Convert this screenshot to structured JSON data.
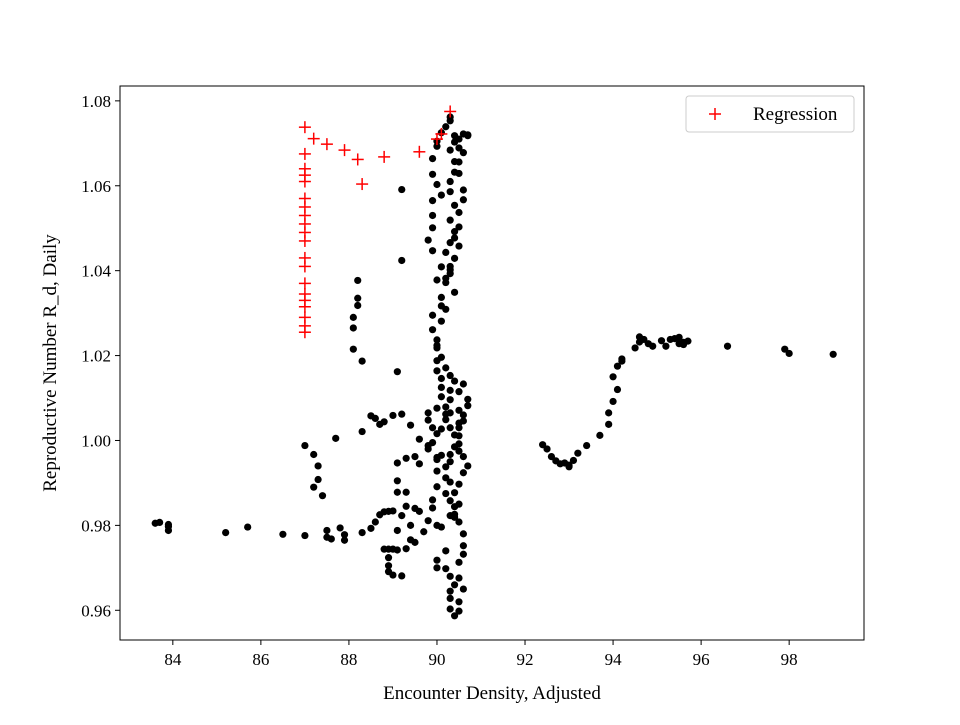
{
  "chart_data": {
    "type": "scatter",
    "title": "",
    "xlabel": "Encounter Density, Adjusted",
    "ylabel": "Reproductive Number R_d, Daily",
    "xlim": [
      82.8,
      99.7
    ],
    "ylim": [
      0.953,
      1.0835
    ],
    "xticks": [
      84,
      86,
      88,
      90,
      92,
      94,
      96,
      98
    ],
    "yticks": [
      0.96,
      0.98,
      1.0,
      1.02,
      1.04,
      1.06,
      1.08
    ],
    "ytick_labels": [
      "0.96",
      "0.98",
      "1.00",
      "1.02",
      "1.04",
      "1.06",
      "1.08"
    ],
    "grid": false,
    "legend_position": "top-right",
    "series": [
      {
        "name": "",
        "marker": "dot",
        "color": "#000000",
        "points": [
          [
            83.6,
            0.9805
          ],
          [
            83.7,
            0.9807
          ],
          [
            83.9,
            0.9788
          ],
          [
            83.9,
            0.9802
          ],
          [
            83.9,
            0.9797
          ],
          [
            85.2,
            0.9783
          ],
          [
            85.7,
            0.9796
          ],
          [
            86.5,
            0.9779
          ],
          [
            87.0,
            0.9776
          ],
          [
            87.5,
            0.9788
          ],
          [
            87.5,
            0.9772
          ],
          [
            87.6,
            0.9768
          ],
          [
            87.8,
            0.9794
          ],
          [
            87.9,
            0.9765
          ],
          [
            87.9,
            0.9778
          ],
          [
            87.0,
            0.9988
          ],
          [
            87.2,
            0.9967
          ],
          [
            87.3,
            0.994
          ],
          [
            87.3,
            0.9908
          ],
          [
            87.2,
            0.989
          ],
          [
            87.4,
            0.987
          ],
          [
            87.7,
            1.0005
          ],
          [
            88.2,
            1.0377
          ],
          [
            88.2,
            1.0335
          ],
          [
            88.2,
            1.0318
          ],
          [
            88.1,
            1.029
          ],
          [
            88.1,
            1.0265
          ],
          [
            88.1,
            1.0215
          ],
          [
            88.3,
            1.0187
          ],
          [
            88.3,
            1.0021
          ],
          [
            88.3,
            0.9783
          ],
          [
            88.5,
            0.9793
          ],
          [
            88.6,
            0.9808
          ],
          [
            88.7,
            0.9825
          ],
          [
            88.8,
            0.9832
          ],
          [
            88.9,
            0.9833
          ],
          [
            89.0,
            0.9834
          ],
          [
            88.5,
            1.0058
          ],
          [
            88.6,
            1.0052
          ],
          [
            88.7,
            1.0038
          ],
          [
            88.8,
            1.0044
          ],
          [
            89.0,
            1.0059
          ],
          [
            89.2,
            1.0062
          ],
          [
            89.4,
            1.0036
          ],
          [
            89.6,
            1.0003
          ],
          [
            89.1,
            1.0162
          ],
          [
            89.2,
            1.0424
          ],
          [
            89.2,
            1.0591
          ],
          [
            88.8,
            0.9744
          ],
          [
            88.9,
            0.9744
          ],
          [
            88.9,
            0.9724
          ],
          [
            89.0,
            0.9744
          ],
          [
            89.1,
            0.9742
          ],
          [
            88.9,
            0.9705
          ],
          [
            88.9,
            0.9691
          ],
          [
            89.0,
            0.9683
          ],
          [
            89.2,
            0.9681
          ],
          [
            89.3,
            0.9745
          ],
          [
            89.4,
            0.9766
          ],
          [
            89.5,
            0.976
          ],
          [
            89.1,
            0.9878
          ],
          [
            89.1,
            0.9905
          ],
          [
            89.3,
            0.9878
          ],
          [
            89.2,
            0.9823
          ],
          [
            89.1,
            0.9788
          ],
          [
            89.4,
            0.98
          ],
          [
            89.1,
            0.9947
          ],
          [
            89.3,
            0.9958
          ],
          [
            89.5,
            0.9962
          ],
          [
            89.6,
            0.9945
          ],
          [
            89.3,
            0.9845
          ],
          [
            89.5,
            0.984
          ],
          [
            89.6,
            0.9833
          ],
          [
            89.7,
            0.9785
          ],
          [
            89.8,
            0.9811
          ],
          [
            89.9,
            0.9841
          ],
          [
            89.9,
            0.986
          ],
          [
            90.0,
            0.9891
          ],
          [
            90.2,
            0.9912
          ],
          [
            90.0,
            0.9928
          ],
          [
            90.1,
            0.9965
          ],
          [
            89.8,
            1.0065
          ],
          [
            89.8,
            1.0048
          ],
          [
            89.9,
            1.003
          ],
          [
            90.0,
            1.0016
          ],
          [
            89.9,
            0.9995
          ],
          [
            89.8,
            0.998
          ],
          [
            90.0,
            0.996
          ],
          [
            90.0,
            0.9955
          ],
          [
            89.8,
            0.9988
          ],
          [
            90.1,
            1.0027
          ],
          [
            90.2,
            1.0062
          ],
          [
            90.1,
            1.0103
          ],
          [
            90.3,
            1.0096
          ],
          [
            90.2,
            1.0079
          ],
          [
            90.3,
            1.0065
          ],
          [
            90.0,
            1.0076
          ],
          [
            90.2,
            1.0049
          ],
          [
            90.3,
            1.003
          ],
          [
            90.4,
            1.0013
          ],
          [
            90.5,
            1.0041
          ],
          [
            90.6,
            1.006
          ],
          [
            90.7,
            1.0082
          ],
          [
            90.7,
            1.0097
          ],
          [
            90.6,
            1.0133
          ],
          [
            90.5,
            1.0115
          ],
          [
            90.4,
            1.014
          ],
          [
            90.3,
            1.0153
          ],
          [
            90.2,
            1.0171
          ],
          [
            90.0,
            1.0164
          ],
          [
            90.1,
            1.0196
          ],
          [
            90.0,
            1.0218
          ],
          [
            90.0,
            1.0237
          ],
          [
            89.9,
            1.0261
          ],
          [
            89.9,
            1.0295
          ],
          [
            90.1,
            1.0317
          ],
          [
            90.1,
            1.0337
          ],
          [
            90.2,
            1.0372
          ],
          [
            90.4,
            1.0349
          ],
          [
            90.3,
            1.0393
          ],
          [
            90.3,
            1.041
          ],
          [
            90.2,
            1.0443
          ],
          [
            90.3,
            1.0466
          ],
          [
            90.4,
            1.0492
          ],
          [
            90.3,
            1.0519
          ],
          [
            90.4,
            1.0554
          ],
          [
            90.3,
            1.0586
          ],
          [
            90.3,
            1.061
          ],
          [
            90.4,
            1.0632
          ],
          [
            90.4,
            1.0657
          ],
          [
            90.3,
            1.0684
          ],
          [
            90.4,
            1.0703
          ],
          [
            90.4,
            1.0718
          ],
          [
            90.5,
            1.071
          ],
          [
            90.6,
            1.0678
          ],
          [
            90.7,
            1.0718
          ],
          [
            90.7,
            1.072
          ],
          [
            90.6,
            1.0722
          ],
          [
            90.5,
            1.0689
          ],
          [
            90.5,
            1.0656
          ],
          [
            90.5,
            1.0629
          ],
          [
            90.6,
            1.059
          ],
          [
            90.6,
            1.0567
          ],
          [
            90.5,
            1.0537
          ],
          [
            90.5,
            1.0503
          ],
          [
            90.4,
            1.0477
          ],
          [
            90.5,
            1.0458
          ],
          [
            90.4,
            1.0429
          ],
          [
            90.3,
            1.0402
          ],
          [
            90.2,
            1.0382
          ],
          [
            90.3,
            1.0762
          ],
          [
            90.3,
            1.0753
          ],
          [
            90.2,
            1.0739
          ],
          [
            90.1,
            1.0725
          ],
          [
            90.0,
            1.0705
          ],
          [
            90.0,
            1.0693
          ],
          [
            89.9,
            1.0664
          ],
          [
            89.9,
            1.0627
          ],
          [
            90.0,
            1.0603
          ],
          [
            90.1,
            1.0578
          ],
          [
            89.9,
            1.0565
          ],
          [
            89.9,
            1.053
          ],
          [
            89.9,
            1.0501
          ],
          [
            89.8,
            1.0472
          ],
          [
            89.9,
            1.0447
          ],
          [
            90.1,
            1.0409
          ],
          [
            90.0,
            1.0378
          ],
          [
            90.2,
            1.0309
          ],
          [
            90.1,
            1.0281
          ],
          [
            90.0,
            1.0224
          ],
          [
            90.0,
            1.0188
          ],
          [
            90.1,
            1.0146
          ],
          [
            90.1,
            1.0125
          ],
          [
            90.3,
            1.0118
          ],
          [
            90.0,
            0.98
          ],
          [
            90.1,
            0.9796
          ],
          [
            90.3,
            0.9823
          ],
          [
            90.4,
            0.9819
          ],
          [
            90.4,
            0.9844
          ],
          [
            90.3,
            0.9858
          ],
          [
            90.2,
            0.9875
          ],
          [
            90.3,
            0.9902
          ],
          [
            90.2,
            0.9938
          ],
          [
            90.3,
            0.995
          ],
          [
            90.3,
            0.9967
          ],
          [
            90.4,
            0.9985
          ],
          [
            90.5,
            0.9992
          ],
          [
            90.5,
            1.0011
          ],
          [
            90.5,
            1.003
          ],
          [
            90.6,
            1.0046
          ],
          [
            90.5,
            1.0071
          ],
          [
            90.6,
            0.9924
          ],
          [
            90.7,
            0.994
          ],
          [
            90.6,
            0.9962
          ],
          [
            90.5,
            0.9975
          ],
          [
            90.2,
            0.974
          ],
          [
            90.0,
            0.9718
          ],
          [
            90.0,
            0.97
          ],
          [
            90.2,
            0.9698
          ],
          [
            90.3,
            0.968
          ],
          [
            90.4,
            0.966
          ],
          [
            90.3,
            0.9645
          ],
          [
            90.3,
            0.9628
          ],
          [
            90.3,
            0.9603
          ],
          [
            90.4,
            0.9587
          ],
          [
            90.5,
            0.9598
          ],
          [
            90.5,
            0.962
          ],
          [
            90.6,
            0.965
          ],
          [
            90.5,
            0.9676
          ],
          [
            90.5,
            0.9713
          ],
          [
            90.6,
            0.9732
          ],
          [
            90.6,
            0.9752
          ],
          [
            90.6,
            0.978
          ],
          [
            90.5,
            0.9808
          ],
          [
            90.4,
            0.9826
          ],
          [
            90.5,
            0.985
          ],
          [
            90.4,
            0.9877
          ],
          [
            90.5,
            0.9897
          ],
          [
            92.4,
            0.999
          ],
          [
            92.5,
            0.998
          ],
          [
            92.6,
            0.9962
          ],
          [
            92.7,
            0.9952
          ],
          [
            92.8,
            0.9945
          ],
          [
            92.9,
            0.9947
          ],
          [
            93.0,
            0.9942
          ],
          [
            93.0,
            0.9938
          ],
          [
            93.1,
            0.9953
          ],
          [
            93.2,
            0.997
          ],
          [
            93.4,
            0.9988
          ],
          [
            93.7,
            1.0012
          ],
          [
            93.9,
            1.0038
          ],
          [
            93.9,
            1.0065
          ],
          [
            94.0,
            1.0092
          ],
          [
            94.1,
            1.012
          ],
          [
            94.0,
            1.015
          ],
          [
            94.1,
            1.0175
          ],
          [
            94.2,
            1.0187
          ],
          [
            94.2,
            1.0192
          ],
          [
            94.5,
            1.0218
          ],
          [
            94.6,
            1.0232
          ],
          [
            94.6,
            1.0244
          ],
          [
            94.7,
            1.0238
          ],
          [
            94.8,
            1.0228
          ],
          [
            94.9,
            1.0222
          ],
          [
            95.1,
            1.0235
          ],
          [
            95.2,
            1.0222
          ],
          [
            95.3,
            1.0238
          ],
          [
            95.4,
            1.024
          ],
          [
            95.5,
            1.0243
          ],
          [
            95.6,
            1.0231
          ],
          [
            95.7,
            1.0234
          ],
          [
            95.6,
            1.0226
          ],
          [
            95.5,
            1.0228
          ],
          [
            96.6,
            1.0222
          ],
          [
            97.9,
            1.0215
          ],
          [
            98.0,
            1.0205
          ],
          [
            99.0,
            1.0203
          ]
        ]
      },
      {
        "name": "Regression",
        "marker": "plus",
        "color": "#ff0000",
        "points": [
          [
            87.0,
            1.0738
          ],
          [
            87.2,
            1.0711
          ],
          [
            87.5,
            1.0698
          ],
          [
            87.9,
            1.0684
          ],
          [
            88.2,
            1.0662
          ],
          [
            88.8,
            1.0668
          ],
          [
            88.3,
            1.0604
          ],
          [
            89.6,
            1.068
          ],
          [
            90.0,
            1.071
          ],
          [
            90.3,
            1.0775
          ],
          [
            90.1,
            1.0722
          ],
          [
            87.0,
            1.0675
          ],
          [
            87.0,
            1.064
          ],
          [
            87.0,
            1.0625
          ],
          [
            87.0,
            1.061
          ],
          [
            87.0,
            1.057
          ],
          [
            87.0,
            1.055
          ],
          [
            87.0,
            1.053
          ],
          [
            87.0,
            1.051
          ],
          [
            87.0,
            1.049
          ],
          [
            87.0,
            1.047
          ],
          [
            87.0,
            1.043
          ],
          [
            87.0,
            1.041
          ],
          [
            87.0,
            1.037
          ],
          [
            87.0,
            1.0345
          ],
          [
            87.0,
            1.033
          ],
          [
            87.0,
            1.0315
          ],
          [
            87.0,
            1.029
          ],
          [
            87.0,
            1.027
          ],
          [
            87.0,
            1.0255
          ]
        ]
      }
    ]
  }
}
